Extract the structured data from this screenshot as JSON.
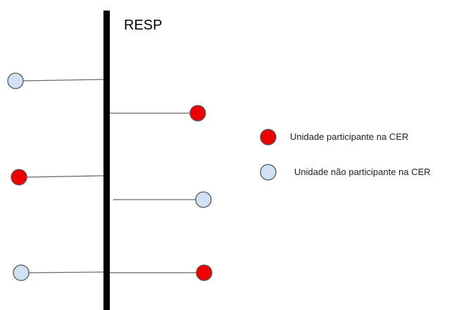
{
  "bus": {
    "label": "RESP"
  },
  "colors": {
    "participant_fill": "#ee0000",
    "non_participant_fill": "#cfe2f3",
    "node_stroke": "#555555",
    "bus_color": "#000000",
    "line_color": "#666666"
  },
  "nodes": [
    {
      "id": "left-1",
      "side": "left",
      "status": "non_participant"
    },
    {
      "id": "right-1",
      "side": "right",
      "status": "participant"
    },
    {
      "id": "left-2",
      "side": "left",
      "status": "participant"
    },
    {
      "id": "right-2",
      "side": "right",
      "status": "non_participant"
    },
    {
      "id": "left-3",
      "side": "left",
      "status": "non_participant"
    },
    {
      "id": "right-3",
      "side": "right",
      "status": "participant"
    }
  ],
  "legend": [
    {
      "status": "participant",
      "label": "Unidade participante na CER"
    },
    {
      "status": "non_participant",
      "label": "Unidade não participante na CER"
    }
  ]
}
